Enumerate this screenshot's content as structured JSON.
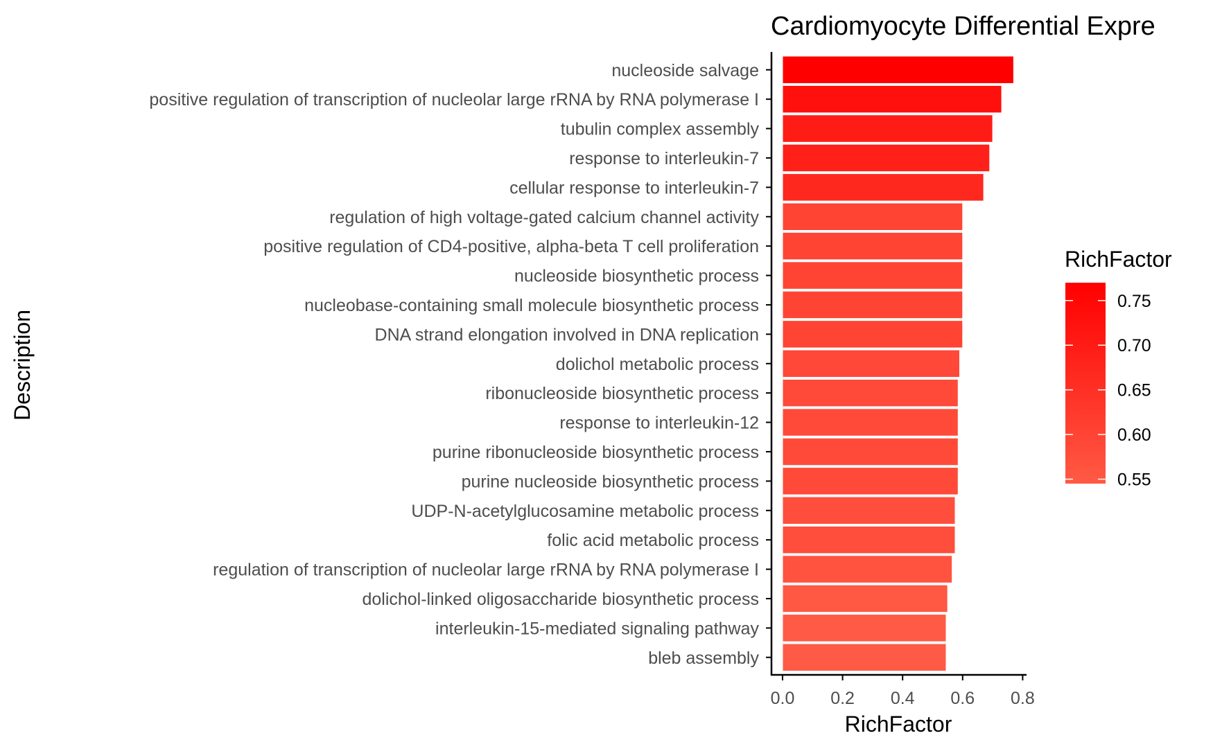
{
  "chart_data": {
    "type": "bar",
    "orientation": "horizontal",
    "title": "Cardiomyocyte Differential Expre",
    "xlabel": "RichFactor",
    "ylabel": "Description",
    "xlim": [
      0,
      0.8
    ],
    "x_ticks": [
      "0.0",
      "0.2",
      "0.4",
      "0.6",
      "0.8"
    ],
    "grid": false,
    "categories": [
      "nucleoside salvage",
      "positive regulation of transcription of nucleolar large rRNA by RNA polymerase I",
      "tubulin complex assembly",
      "response to interleukin-7",
      "cellular response to interleukin-7",
      "regulation of high voltage-gated calcium channel activity",
      "positive regulation of CD4-positive, alpha-beta T cell proliferation",
      "nucleoside biosynthetic process",
      "nucleobase-containing small molecule biosynthetic process",
      "DNA strand elongation involved in DNA replication",
      "dolichol metabolic process",
      "ribonucleoside biosynthetic process",
      "response to interleukin-12",
      "purine ribonucleoside biosynthetic process",
      "purine nucleoside biosynthetic process",
      "UDP-N-acetylglucosamine metabolic process",
      "folic acid metabolic process",
      "regulation of transcription of nucleolar large rRNA by RNA polymerase I",
      "dolichol-linked oligosaccharide biosynthetic process",
      "interleukin-15-mediated signaling pathway",
      "bleb assembly"
    ],
    "values": [
      0.77,
      0.73,
      0.7,
      0.69,
      0.67,
      0.6,
      0.6,
      0.6,
      0.6,
      0.6,
      0.59,
      0.585,
      0.585,
      0.585,
      0.585,
      0.575,
      0.575,
      0.565,
      0.55,
      0.545,
      0.545
    ],
    "legend": {
      "title": "RichFactor",
      "placement": "right",
      "labels": [
        "0.75",
        "0.70",
        "0.65",
        "0.60",
        "0.55"
      ],
      "values": [
        0.75,
        0.7,
        0.65,
        0.6,
        0.55
      ],
      "range": [
        0.545,
        0.77
      ],
      "color_low": "#ff5a45",
      "color_high": "#ff0000"
    },
    "bar_outline_color": "#ffffff",
    "axis_color": "#000000"
  }
}
